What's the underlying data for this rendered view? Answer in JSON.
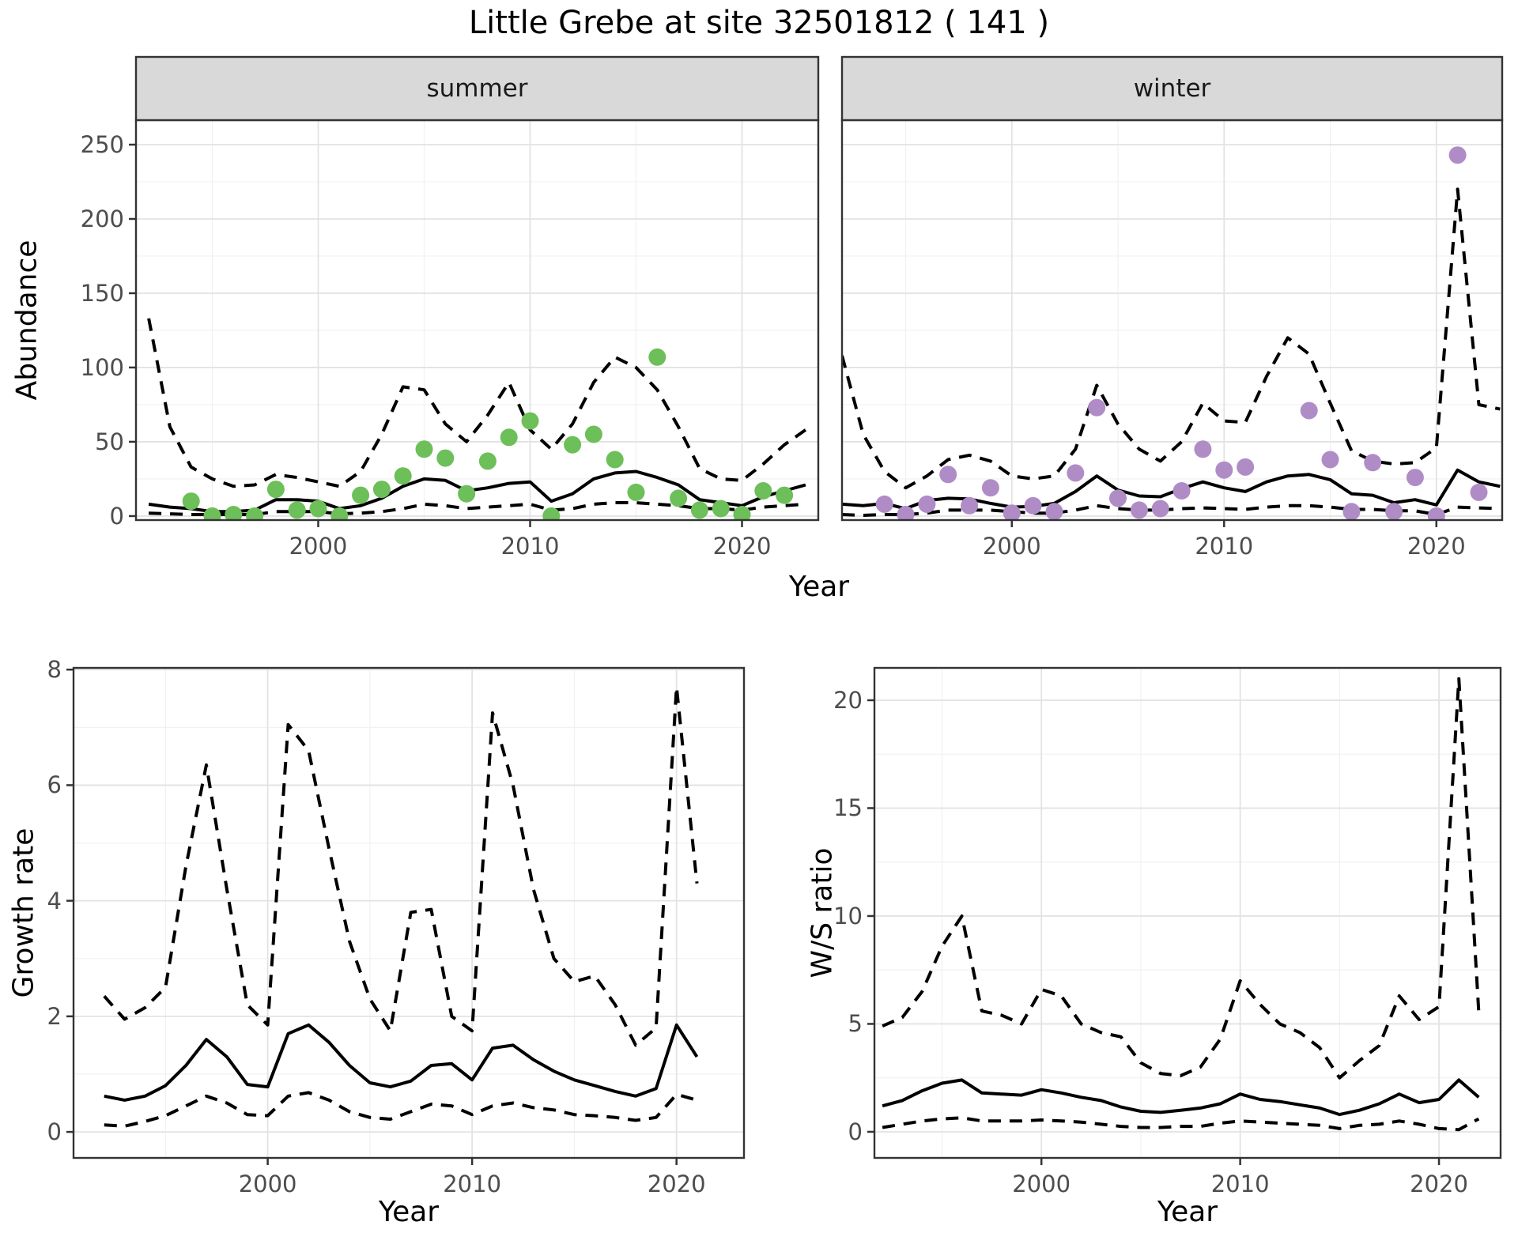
{
  "title": "Little Grebe at site 32501812 ( 141 )",
  "axis_labels": {
    "abundance": "Abundance",
    "year": "Year",
    "growth_rate": "Growth rate",
    "ws_ratio": "W/S ratio"
  },
  "colors": {
    "summer_points": "#6cbf59",
    "winter_points": "#b08cc7",
    "line": "#000000",
    "panel_border": "#333333",
    "strip_fill": "#d9d9d9",
    "grid_major": "#e3e3e3",
    "grid_minor": "#f0f0f0",
    "tick_text": "#4d4d4d"
  },
  "chart_data": [
    {
      "id": "abundance-summer",
      "type": "line",
      "facet_label": "summer",
      "xlabel": "Year",
      "ylabel": "Abundance",
      "xlim": [
        1991.4,
        2023.6
      ],
      "ylim": [
        -2.7,
        266.5
      ],
      "x_major": [
        2000,
        2010,
        2020
      ],
      "x_minor": [
        1995,
        2005,
        2015
      ],
      "y_major": [
        0,
        50,
        100,
        150,
        200,
        250
      ],
      "y_minor": [
        25,
        75,
        125,
        175,
        225
      ],
      "years": [
        1992,
        1993,
        1994,
        1995,
        1996,
        1997,
        1998,
        1999,
        2000,
        2001,
        2002,
        2003,
        2004,
        2005,
        2006,
        2007,
        2008,
        2009,
        2010,
        2011,
        2012,
        2013,
        2014,
        2015,
        2016,
        2017,
        2018,
        2019,
        2020,
        2021,
        2022,
        2023
      ],
      "series": [
        {
          "name": "upper_95ci",
          "style": "dashed",
          "values": [
            133,
            60,
            33,
            25,
            20,
            21,
            28,
            26,
            23,
            20,
            30,
            55,
            87,
            85,
            62,
            50,
            68,
            90,
            58,
            45,
            62,
            90,
            107,
            100,
            85,
            60,
            32,
            25,
            24,
            35,
            48,
            58
          ]
        },
        {
          "name": "mean",
          "style": "solid",
          "values": [
            8,
            6,
            5,
            3,
            3,
            4,
            11,
            11,
            10,
            5,
            7,
            12,
            20,
            25,
            24,
            17,
            19,
            22,
            23,
            10,
            15,
            25,
            29,
            30,
            26,
            21,
            11,
            9,
            7,
            13,
            17,
            21
          ]
        },
        {
          "name": "lower_95ci",
          "style": "dashed",
          "values": [
            2,
            1.5,
            1,
            1,
            1,
            1,
            3,
            3,
            3,
            1.5,
            2,
            3,
            5,
            8,
            7,
            5,
            6,
            7,
            8,
            4,
            5,
            8,
            9,
            9,
            8,
            7,
            5,
            5,
            4,
            6,
            7,
            8
          ]
        }
      ],
      "points": {
        "name": "observed_counts",
        "color_key": "summer_points",
        "years": [
          1994,
          1995,
          1996,
          1997,
          1998,
          1999,
          2000,
          2001,
          2002,
          2003,
          2004,
          2005,
          2006,
          2007,
          2008,
          2009,
          2010,
          2011,
          2012,
          2013,
          2014,
          2015,
          2016,
          2017,
          2018,
          2019,
          2020,
          2021,
          2022
        ],
        "values": [
          10,
          0,
          1,
          0,
          18,
          4,
          5,
          0,
          14,
          18,
          27,
          45,
          39,
          15,
          37,
          53,
          64,
          0,
          48,
          55,
          38,
          16,
          107,
          12,
          4,
          5,
          1,
          17,
          14
        ]
      }
    },
    {
      "id": "abundance-winter",
      "type": "line",
      "facet_label": "winter",
      "xlabel": "Year",
      "ylabel": "Abundance",
      "xlim": [
        1992.0,
        2023.1
      ],
      "ylim": [
        -2.7,
        266.5
      ],
      "x_major": [
        2000,
        2010,
        2020
      ],
      "x_minor": [
        1995,
        2005,
        2015
      ],
      "y_major": [
        0,
        50,
        100,
        150,
        200,
        250
      ],
      "y_minor": [
        25,
        75,
        125,
        175,
        225
      ],
      "years": [
        1992,
        1993,
        1994,
        1995,
        1996,
        1997,
        1998,
        1999,
        2000,
        2001,
        2002,
        2003,
        2004,
        2005,
        2006,
        2007,
        2008,
        2009,
        2010,
        2011,
        2012,
        2013,
        2014,
        2015,
        2016,
        2017,
        2018,
        2019,
        2020,
        2021,
        2022,
        2023
      ],
      "series": [
        {
          "name": "upper_95ci",
          "style": "dashed",
          "values": [
            108,
            55,
            30,
            19,
            27,
            38,
            41,
            37,
            27,
            25,
            27,
            45,
            88,
            62,
            45,
            37,
            50,
            76,
            64,
            63,
            94,
            120,
            109,
            76,
            44,
            37,
            35,
            36,
            46,
            220,
            75,
            72
          ]
        },
        {
          "name": "mean",
          "style": "solid",
          "values": [
            8,
            7,
            8.5,
            5,
            10.5,
            12,
            11.5,
            8.5,
            6,
            6.5,
            8.5,
            16.5,
            27,
            17.5,
            13.5,
            13,
            18.5,
            23,
            19,
            16.5,
            23,
            27,
            28,
            24.5,
            15,
            14,
            9,
            11,
            7.5,
            31,
            23,
            20
          ]
        },
        {
          "name": "lower_95ci",
          "style": "dashed",
          "values": [
            1,
            0.5,
            1,
            1,
            2,
            4,
            4,
            4,
            3,
            2,
            2,
            4,
            7,
            5,
            4,
            4,
            5,
            5.5,
            5,
            4.5,
            6,
            7,
            7,
            6,
            4.5,
            4.5,
            3.5,
            3.5,
            1,
            6,
            5.5,
            5
          ]
        }
      ],
      "points": {
        "name": "observed_counts",
        "color_key": "winter_points",
        "years": [
          1994,
          1995,
          1996,
          1997,
          1998,
          1999,
          2000,
          2001,
          2002,
          2003,
          2004,
          2005,
          2006,
          2007,
          2008,
          2009,
          2010,
          2011,
          2014,
          2015,
          2016,
          2017,
          2018,
          2019,
          2020,
          2021,
          2022
        ],
        "values": [
          8,
          1,
          8,
          28,
          7,
          19,
          2,
          7,
          3,
          29,
          73,
          12,
          4,
          5,
          17,
          45,
          31,
          33,
          71,
          38,
          3,
          36,
          3,
          26,
          0,
          243,
          16
        ]
      }
    },
    {
      "id": "growth-rate",
      "type": "line",
      "facet_label": null,
      "xlabel": "Year",
      "ylabel": "Growth rate",
      "xlim": [
        1990.5,
        2023.3
      ],
      "ylim": [
        -0.45,
        8.03
      ],
      "x_major": [
        2000,
        2010,
        2020
      ],
      "x_minor": [
        1995,
        2005,
        2015
      ],
      "y_major": [
        0,
        2,
        4,
        6,
        8
      ],
      "y_minor": [
        1,
        3,
        5,
        7
      ],
      "years": [
        1992,
        1993,
        1994,
        1995,
        1996,
        1997,
        1998,
        1999,
        2000,
        2001,
        2002,
        2003,
        2004,
        2005,
        2006,
        2007,
        2008,
        2009,
        2010,
        2011,
        2012,
        2013,
        2014,
        2015,
        2016,
        2017,
        2018,
        2019,
        2020,
        2021
      ],
      "series": [
        {
          "name": "upper_95ci",
          "style": "dashed",
          "values": [
            2.35,
            1.95,
            2.15,
            2.5,
            4.6,
            6.35,
            4.2,
            2.2,
            1.85,
            7.05,
            6.6,
            4.9,
            3.3,
            2.3,
            1.75,
            3.8,
            3.85,
            2.0,
            1.75,
            7.25,
            6.0,
            4.2,
            3.0,
            2.6,
            2.7,
            2.2,
            1.5,
            1.8,
            7.7,
            4.3
          ]
        },
        {
          "name": "mean",
          "style": "solid",
          "values": [
            0.62,
            0.55,
            0.62,
            0.8,
            1.15,
            1.6,
            1.3,
            0.82,
            0.78,
            1.7,
            1.85,
            1.55,
            1.15,
            0.85,
            0.78,
            0.88,
            1.15,
            1.18,
            0.9,
            1.45,
            1.5,
            1.25,
            1.05,
            0.9,
            0.8,
            0.7,
            0.62,
            0.75,
            1.85,
            1.3
          ]
        },
        {
          "name": "lower_95ci",
          "style": "dashed",
          "values": [
            0.12,
            0.1,
            0.18,
            0.28,
            0.45,
            0.62,
            0.5,
            0.3,
            0.28,
            0.62,
            0.68,
            0.55,
            0.35,
            0.25,
            0.22,
            0.35,
            0.48,
            0.45,
            0.3,
            0.45,
            0.5,
            0.42,
            0.38,
            0.3,
            0.28,
            0.25,
            0.2,
            0.25,
            0.65,
            0.55
          ]
        }
      ],
      "points": null
    },
    {
      "id": "ws-ratio",
      "type": "line",
      "facet_label": null,
      "xlabel": "Year",
      "ylabel": "W/S ratio",
      "xlim": [
        1991.6,
        2023.1
      ],
      "ylim": [
        -1.21,
        21.5
      ],
      "x_major": [
        2000,
        2010,
        2020
      ],
      "x_minor": [
        1995,
        2005,
        2015
      ],
      "y_major": [
        0,
        5,
        10,
        15,
        20
      ],
      "y_minor": [
        2.5,
        7.5,
        12.5,
        17.5
      ],
      "years": [
        1992,
        1993,
        1994,
        1995,
        1996,
        1997,
        1998,
        1999,
        2000,
        2001,
        2002,
        2003,
        2004,
        2005,
        2006,
        2007,
        2008,
        2009,
        2010,
        2011,
        2012,
        2013,
        2014,
        2015,
        2016,
        2017,
        2018,
        2019,
        2020,
        2021,
        2022
      ],
      "series": [
        {
          "name": "upper_95ci",
          "style": "dashed",
          "values": [
            4.9,
            5.3,
            6.5,
            8.6,
            10.0,
            5.6,
            5.4,
            5.0,
            6.6,
            6.3,
            5.0,
            4.6,
            4.4,
            3.2,
            2.7,
            2.6,
            3.0,
            4.3,
            7.0,
            5.9,
            5.0,
            4.6,
            3.9,
            2.5,
            3.3,
            4.0,
            6.3,
            5.2,
            5.8,
            21.0,
            5.6
          ]
        },
        {
          "name": "mean",
          "style": "solid",
          "values": [
            1.2,
            1.45,
            1.9,
            2.25,
            2.4,
            1.8,
            1.75,
            1.7,
            1.95,
            1.8,
            1.6,
            1.45,
            1.15,
            0.95,
            0.9,
            1.0,
            1.1,
            1.3,
            1.75,
            1.5,
            1.4,
            1.25,
            1.1,
            0.8,
            1.0,
            1.3,
            1.75,
            1.35,
            1.5,
            2.4,
            1.6
          ]
        },
        {
          "name": "lower_95ci",
          "style": "dashed",
          "values": [
            0.2,
            0.35,
            0.5,
            0.6,
            0.65,
            0.5,
            0.5,
            0.5,
            0.55,
            0.5,
            0.45,
            0.35,
            0.25,
            0.2,
            0.2,
            0.25,
            0.25,
            0.4,
            0.5,
            0.45,
            0.4,
            0.35,
            0.3,
            0.15,
            0.3,
            0.35,
            0.5,
            0.35,
            0.15,
            0.1,
            0.6
          ]
        }
      ],
      "points": null
    }
  ]
}
